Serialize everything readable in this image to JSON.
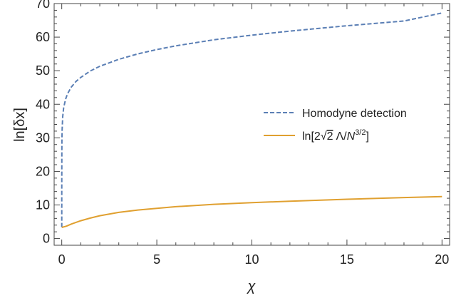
{
  "chart_data": {
    "type": "line",
    "title": "",
    "xlabel": "χ",
    "ylabel": "ln[δx]",
    "xlim": [
      -0.4,
      20.4
    ],
    "ylim": [
      -2,
      70
    ],
    "xticks": [
      0,
      5,
      10,
      15,
      20
    ],
    "yticks": [
      0,
      10,
      20,
      30,
      40,
      50,
      60,
      70
    ],
    "grid": false,
    "legend_position": "middle-right",
    "series": [
      {
        "name": "Homodyne detection",
        "color": "#5b7fb5",
        "dash": "dashed",
        "x": [
          0,
          0.001,
          0.005,
          0.01,
          0.02,
          0.05,
          0.1,
          0.2,
          0.3,
          0.5,
          0.75,
          1,
          1.5,
          2,
          3,
          4,
          5,
          6,
          8,
          10,
          12,
          15,
          18,
          20
        ],
        "y": [
          3.4,
          14.5,
          25,
          29.2,
          32.4,
          36.3,
          38.9,
          41.5,
          43.1,
          45.1,
          46.8,
          48,
          49.9,
          51.3,
          53.4,
          55,
          56.3,
          57.4,
          59.2,
          60.6,
          61.8,
          63.4,
          64.8,
          67.2
        ]
      },
      {
        "name": "ln[2√2 Λ/N^{3/2}]",
        "color": "#e0a030",
        "dash": "solid",
        "x": [
          0,
          0.25,
          0.5,
          1,
          1.5,
          2,
          3,
          4,
          5,
          6,
          8,
          10,
          12,
          15,
          18,
          20
        ],
        "y": [
          3.3,
          3.7,
          4.3,
          5.3,
          6.1,
          6.8,
          7.8,
          8.5,
          9.0,
          9.5,
          10.2,
          10.7,
          11.1,
          11.7,
          12.2,
          12.5
        ]
      }
    ]
  },
  "legend": {
    "item1": "Homodyne detection",
    "item2": {
      "prefix": "ln[2",
      "radical": "√",
      "radicand": "2",
      "lambda": "Λ",
      "slash": "/",
      "n": "N",
      "exp": "3/2",
      "suffix": "]"
    }
  },
  "axes_text": {
    "xlabel": "χ",
    "ylabel": "ln[δx]"
  }
}
